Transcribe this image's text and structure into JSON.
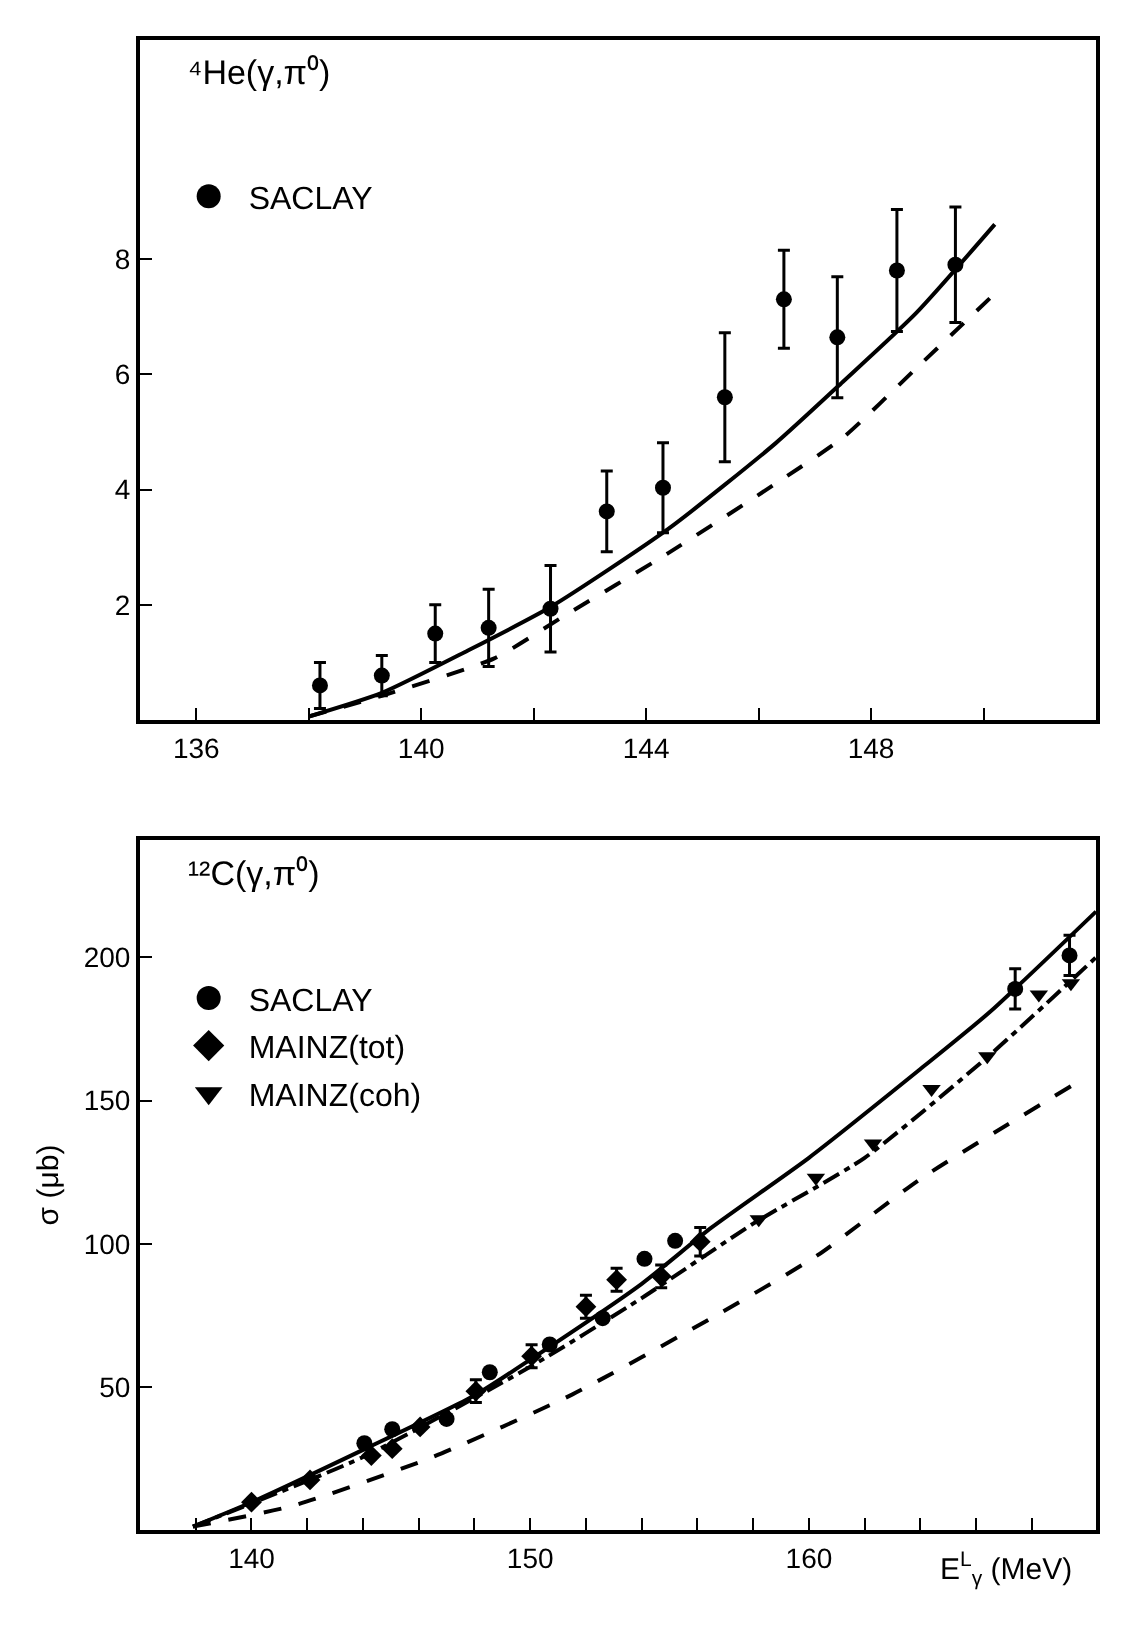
{
  "chart_data": [
    {
      "type": "scatter",
      "title": "⁴He(γ,π⁰)",
      "xlim": [
        135,
        152
      ],
      "ylim": [
        0,
        11.8
      ],
      "xticks": [
        136,
        {
          "value": 138,
          "label": null
        },
        140,
        {
          "value": 142,
          "label": null
        },
        144,
        {
          "value": 146,
          "label": null
        },
        148,
        {
          "value": 150,
          "label": null
        }
      ],
      "yticks": [
        2,
        4,
        6,
        8
      ],
      "grid": false,
      "legend": "top left",
      "series": [
        {
          "name": "SACLAY",
          "marker": "circle",
          "color": "#000000",
          "x": [
            138.2,
            139.3,
            140.25,
            141.2,
            142.3,
            143.3,
            144.3,
            145.4,
            146.45,
            147.4,
            148.46,
            149.5
          ],
          "values": [
            0.6,
            0.77,
            1.5,
            1.6,
            1.93,
            3.62,
            4.03,
            5.6,
            7.3,
            6.64,
            7.8,
            7.9
          ],
          "errors": [
            0.4,
            0.35,
            0.5,
            0.67,
            0.75,
            0.7,
            0.78,
            1.12,
            0.85,
            1.05,
            1.06,
            1.0
          ]
        },
        {
          "type": "line",
          "line_style": "solid",
          "marker": "none",
          "color": "#000000",
          "x": [
            138,
            139.3,
            140.8,
            142.3,
            144.4,
            146.3,
            147.5,
            148.8,
            150.2
          ],
          "values": [
            0.06,
            0.47,
            1.19,
            1.96,
            3.32,
            4.8,
            5.87,
            7.06,
            8.6
          ]
        },
        {
          "type": "line",
          "line_style": "dashed",
          "marker": "none",
          "color": "#000000",
          "x": [
            138,
            139.3,
            141.3,
            142.5,
            144.4,
            146.3,
            147.5,
            148.8,
            150.2
          ],
          "values": [
            0.06,
            0.42,
            1.07,
            1.78,
            2.9,
            4.1,
            4.9,
            6.1,
            7.4
          ]
        }
      ]
    },
    {
      "type": "scatter",
      "title": "¹²C(γ,π⁰)",
      "xlabel": "E$^{L}$$_{γ}$ (MeV)",
      "ylabel": "σ (μb)",
      "xlim": [
        136,
        170.3
      ],
      "ylim": [
        0,
        241
      ],
      "xticks": [
        {
          "value": 138,
          "label": null
        },
        140,
        {
          "value": 142,
          "label": null
        },
        {
          "value": 144,
          "label": null
        },
        {
          "value": 146,
          "label": null
        },
        {
          "value": 148,
          "label": null
        },
        150,
        {
          "value": 152,
          "label": null
        },
        {
          "value": 154,
          "label": null
        },
        {
          "value": 156,
          "label": null
        },
        {
          "value": 158,
          "label": null
        },
        160,
        {
          "value": 162,
          "label": null
        },
        {
          "value": 164,
          "label": null
        },
        {
          "value": 166,
          "label": null
        },
        {
          "value": 168,
          "label": null
        }
      ],
      "yticks": [
        50,
        100,
        150,
        200
      ],
      "grid": false,
      "legend": "top left",
      "series": [
        {
          "name": "SACLAY",
          "marker": "circle",
          "color": "#000000",
          "x": [
            144.05,
            145.05,
            147.0,
            148.55,
            150.7,
            152.6,
            154.1,
            155.2,
            167.4,
            169.35
          ],
          "values": [
            30.3,
            35.2,
            38.8,
            55.1,
            64.8,
            74,
            94.7,
            101,
            189,
            200.7
          ],
          "errors": [
            null,
            null,
            null,
            null,
            null,
            null,
            null,
            null,
            7,
            7
          ]
        },
        {
          "name": "MAINZ(tot)",
          "marker": "diamond",
          "color": "#000000",
          "x": [
            140,
            142.1,
            144.3,
            145.05,
            146.05,
            148.05,
            150.05,
            152,
            153.1,
            154.7,
            156.1
          ],
          "values": [
            9.7,
            17.5,
            26,
            28.4,
            36,
            48.5,
            60.7,
            78,
            87.4,
            88.6,
            100.7
          ],
          "errors": [
            null,
            null,
            null,
            null,
            null,
            4,
            4,
            4,
            4,
            4,
            5
          ]
        },
        {
          "name": "MAINZ(coh)",
          "marker": "triangle",
          "color": "#000000",
          "x": [
            158.2,
            160.25,
            162.3,
            164.4,
            166.4,
            168.25,
            169.4
          ],
          "values": [
            108.5,
            123,
            135,
            154,
            165.5,
            187,
            191
          ]
        },
        {
          "type": "line",
          "line_style": "solid",
          "marker": "none",
          "color": "#000000",
          "x": [
            137.9,
            140,
            144,
            148,
            150,
            154,
            156.5,
            160,
            164,
            166.5,
            170.3
          ],
          "values": [
            1.2,
            9.7,
            28,
            47,
            59.5,
            86,
            105.6,
            130,
            161,
            181,
            216
          ]
        },
        {
          "type": "line",
          "line_style": "dashdot",
          "marker": "none",
          "color": "#000000",
          "x": [
            137.9,
            144,
            150,
            154,
            158,
            162,
            166.5,
            170.3
          ],
          "values": [
            1.2,
            25.5,
            57,
            81,
            107,
            130,
            166,
            200
          ]
        },
        {
          "type": "line",
          "line_style": "dashed",
          "marker": "none",
          "color": "#000000",
          "x": [
            137.9,
            141.5,
            146.5,
            151.5,
            156.5,
            160.3,
            164,
            169.4
          ],
          "values": [
            1.2,
            8.5,
            25.5,
            47.3,
            74,
            95.9,
            122.6,
            155
          ]
        }
      ]
    }
  ]
}
